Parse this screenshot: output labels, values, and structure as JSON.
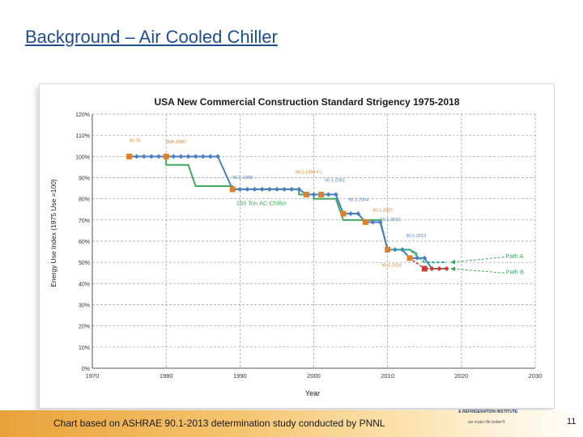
{
  "slide": {
    "title": "Background – Air Cooled Chiller",
    "footer": "Chart based on ASHRAE 90.1-2013 determination study conducted by PNNL",
    "org_name": "& REFRIGERATION INSTITUTE",
    "org_tagline": "we make life better®",
    "page_number": "11"
  },
  "chart_data": {
    "type": "line",
    "title": "USA New Commercial Construction Standard Strigency 1975-2018",
    "xlabel": "Year",
    "ylabel": "Energy Use Index (1975 Use =100)",
    "xlim": [
      1970,
      2030
    ],
    "ylim": [
      0,
      1.2
    ],
    "x_ticks": [
      "1970",
      "1980",
      "1990",
      "2000",
      "2010",
      "2020",
      "2030"
    ],
    "y_ticks": [
      "0%",
      "10%",
      "20%",
      "30%",
      "40%",
      "50%",
      "60%",
      "70%",
      "80%",
      "90%",
      "100%",
      "110%",
      "120%"
    ],
    "grid": true,
    "series": [
      {
        "name": "",
        "style": "blue-diamonds",
        "color": "#4a7fc1",
        "points": [
          [
            1975,
            1.0
          ],
          [
            1976,
            1.0
          ],
          [
            1977,
            1.0
          ],
          [
            1978,
            1.0
          ],
          [
            1979,
            1.0
          ],
          [
            1980,
            1.0
          ],
          [
            1981,
            1.0
          ],
          [
            1982,
            1.0
          ],
          [
            1983,
            1.0
          ],
          [
            1984,
            1.0
          ],
          [
            1985,
            1.0
          ],
          [
            1986,
            1.0
          ],
          [
            1987,
            1.0
          ],
          [
            1989,
            0.845
          ],
          [
            1990,
            0.845
          ],
          [
            1991,
            0.845
          ],
          [
            1992,
            0.845
          ],
          [
            1993,
            0.845
          ],
          [
            1994,
            0.845
          ],
          [
            1995,
            0.845
          ],
          [
            1996,
            0.845
          ],
          [
            1997,
            0.845
          ],
          [
            1998,
            0.845
          ],
          [
            1999,
            0.82
          ],
          [
            2000,
            0.82
          ],
          [
            2001,
            0.82
          ],
          [
            2002,
            0.82
          ],
          [
            2003,
            0.82
          ],
          [
            2004,
            0.73
          ],
          [
            2005,
            0.73
          ],
          [
            2006,
            0.73
          ],
          [
            2007,
            0.69
          ],
          [
            2008,
            0.69
          ],
          [
            2009,
            0.69
          ],
          [
            2010,
            0.56
          ],
          [
            2011,
            0.56
          ],
          [
            2012,
            0.56
          ],
          [
            2013,
            0.52
          ],
          [
            2014,
            0.52
          ],
          [
            2015,
            0.52
          ],
          [
            2016,
            0.47
          ],
          [
            2017,
            0.47
          ],
          [
            2018,
            0.47
          ]
        ]
      },
      {
        "name": "",
        "style": "orange-squares",
        "color": "#e0812a",
        "points": [
          [
            1975,
            1.0
          ],
          [
            1980,
            1.0
          ],
          [
            1989,
            0.845
          ],
          [
            1999,
            0.82
          ],
          [
            2001,
            0.82
          ],
          [
            2004,
            0.73
          ],
          [
            2007,
            0.69
          ],
          [
            2010,
            0.56
          ],
          [
            2013,
            0.52
          ]
        ]
      },
      {
        "name": "Path A",
        "style": "teal-dashed",
        "color": "#2aa58c",
        "points": [
          [
            2010,
            0.56
          ],
          [
            2013,
            0.56
          ],
          [
            2014,
            0.53
          ],
          [
            2015,
            0.5
          ],
          [
            2018,
            0.5
          ]
        ]
      },
      {
        "name": "Path B",
        "style": "red-diamonds",
        "color": "#d63a2e",
        "points": [
          [
            2013,
            0.52
          ],
          [
            2015,
            0.47
          ],
          [
            2016,
            0.47
          ],
          [
            2017,
            0.47
          ],
          [
            2018,
            0.47
          ]
        ]
      },
      {
        "name": "150 Ton AC Chiller",
        "style": "green-line",
        "color": "#3cab5c",
        "points": [
          [
            1980,
            1.0
          ],
          [
            1980,
            0.96
          ],
          [
            1983,
            0.96
          ],
          [
            1984,
            0.86
          ],
          [
            1989,
            0.86
          ],
          [
            1989,
            0.845
          ],
          [
            1998,
            0.845
          ],
          [
            1998,
            0.82
          ],
          [
            1999,
            0.82
          ],
          [
            2000,
            0.82
          ],
          [
            2000,
            0.8
          ],
          [
            2003,
            0.8
          ],
          [
            2004,
            0.7
          ],
          [
            2009,
            0.7
          ],
          [
            2010,
            0.56
          ],
          [
            2013,
            0.56
          ],
          [
            2014,
            0.54
          ]
        ]
      }
    ],
    "annotations": [
      {
        "text": "90.75",
        "x": 1975,
        "y": 1.068,
        "color": "#e0812a"
      },
      {
        "text": "90A-1980",
        "x": 1980,
        "y": 1.063,
        "color": "#e0812a"
      },
      {
        "text": "90.1-1989",
        "x": 1989,
        "y": 0.895,
        "color": "#4a7fc1"
      },
      {
        "text": "90.1-1999 F1",
        "x": 1997.5,
        "y": 0.92,
        "color": "#e0812a"
      },
      {
        "text": "90.1-2001",
        "x": 2001.5,
        "y": 0.88,
        "color": "#4a7fc1"
      },
      {
        "text": "90.1-2004",
        "x": 2004.7,
        "y": 0.79,
        "color": "#4a7fc1"
      },
      {
        "text": "90.1-2007",
        "x": 2008.0,
        "y": 0.74,
        "color": "#e0812a"
      },
      {
        "text": "90.1-2010",
        "x": 2009.0,
        "y": 0.695,
        "color": "#4a7fc1"
      },
      {
        "text": "90.1-2013",
        "x": 2012.5,
        "y": 0.62,
        "color": "#4a7fc1"
      },
      {
        "text": "90.1-2016",
        "x": 2009.2,
        "y": 0.48,
        "color": "#e0812a"
      },
      {
        "text": "150 Ton AC Chiller",
        "x": 1989.5,
        "y": 0.77,
        "color": "#3cab5c"
      },
      {
        "text": "Path A",
        "x": 2026.0,
        "y": 0.52,
        "color": "#3cab5c"
      },
      {
        "text": "Path B",
        "x": 2026.0,
        "y": 0.445,
        "color": "#3cab5c"
      }
    ]
  }
}
